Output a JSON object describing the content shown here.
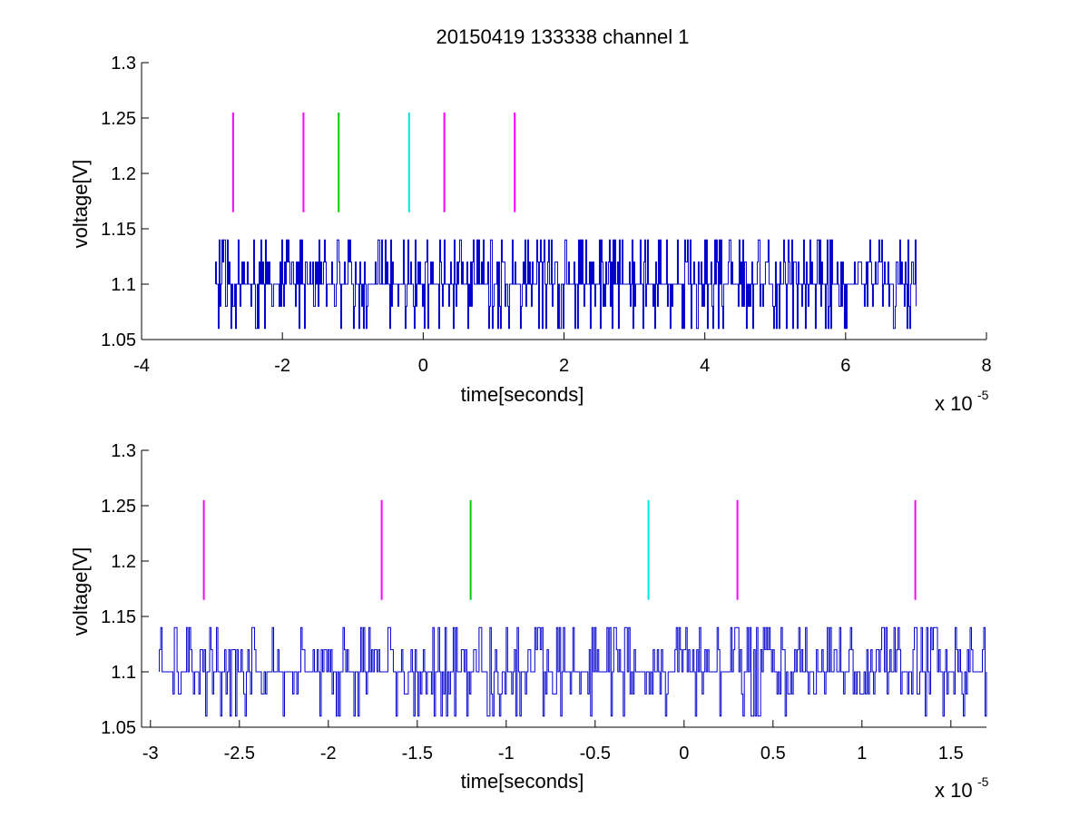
{
  "figure": {
    "title": "20150419 133338 channel 1",
    "background": "#ffffff"
  },
  "chart_data": [
    {
      "type": "line",
      "xlabel": "time[seconds]",
      "ylabel": "voltage[V]",
      "x_multiplier_label": "x 10",
      "x_multiplier_exponent": "-5",
      "xlim": [
        -4,
        8
      ],
      "ylim": [
        1.05,
        1.3
      ],
      "x_ticks": [
        -4,
        -2,
        0,
        2,
        4,
        6,
        8
      ],
      "x_tick_labels": [
        "-4",
        "-2",
        "0",
        "2",
        "4",
        "6",
        "8"
      ],
      "y_ticks": [
        1.05,
        1.1,
        1.15,
        1.2,
        1.25,
        1.3
      ],
      "y_tick_labels": [
        "1.05",
        "1.1",
        "1.15",
        "1.2",
        "1.25",
        "1.3"
      ],
      "grid": false,
      "signal": {
        "color": "#0000cc",
        "x_start": -2.95,
        "x_end": 7.0,
        "baseline": 1.1,
        "high": 1.14,
        "low": 1.06,
        "levels": [
          1.06,
          1.08,
          1.1,
          1.12,
          1.14
        ],
        "description_note": "noisy step signal between 1.06 and 1.14 V"
      },
      "markers": [
        {
          "x": -2.7,
          "y_range": [
            1.165,
            1.255
          ],
          "color": "#ff00ff"
        },
        {
          "x": -1.7,
          "y_range": [
            1.165,
            1.255
          ],
          "color": "#ff00ff"
        },
        {
          "x": -1.2,
          "y_range": [
            1.165,
            1.255
          ],
          "color": "#00cc00"
        },
        {
          "x": -0.2,
          "y_range": [
            1.165,
            1.255
          ],
          "color": "#00e5e5"
        },
        {
          "x": 0.3,
          "y_range": [
            1.165,
            1.255
          ],
          "color": "#ff00ff"
        },
        {
          "x": 1.3,
          "y_range": [
            1.165,
            1.255
          ],
          "color": "#ff00ff"
        }
      ]
    },
    {
      "type": "line",
      "xlabel": "time[seconds]",
      "ylabel": "voltage[V]",
      "x_multiplier_label": "x 10",
      "x_multiplier_exponent": "-5",
      "xlim": [
        -3.05,
        1.7
      ],
      "ylim": [
        1.05,
        1.3
      ],
      "x_ticks": [
        -3,
        -2.5,
        -2,
        -1.5,
        -1,
        -0.5,
        0,
        0.5,
        1,
        1.5
      ],
      "x_tick_labels": [
        "-3",
        "-2.5",
        "-2",
        "-1.5",
        "-1",
        "-0.5",
        "0",
        "0.5",
        "1",
        "1.5"
      ],
      "y_ticks": [
        1.05,
        1.1,
        1.15,
        1.2,
        1.25,
        1.3
      ],
      "y_tick_labels": [
        "1.05",
        "1.1",
        "1.15",
        "1.2",
        "1.25",
        "1.3"
      ],
      "grid": false,
      "signal": {
        "color": "#0000cc",
        "x_start": -2.95,
        "x_end": 1.7,
        "baseline": 1.1,
        "high": 1.14,
        "low": 1.06,
        "levels": [
          1.06,
          1.08,
          1.1,
          1.12,
          1.14
        ]
      },
      "markers": [
        {
          "x": -2.7,
          "y_range": [
            1.165,
            1.255
          ],
          "color": "#ff00ff"
        },
        {
          "x": -1.7,
          "y_range": [
            1.165,
            1.255
          ],
          "color": "#ff00ff"
        },
        {
          "x": -1.2,
          "y_range": [
            1.165,
            1.255
          ],
          "color": "#00cc00"
        },
        {
          "x": -0.2,
          "y_range": [
            1.165,
            1.255
          ],
          "color": "#00e5e5"
        },
        {
          "x": 0.3,
          "y_range": [
            1.165,
            1.255
          ],
          "color": "#ff00ff"
        },
        {
          "x": 1.3,
          "y_range": [
            1.165,
            1.255
          ],
          "color": "#ff00ff"
        }
      ]
    }
  ]
}
